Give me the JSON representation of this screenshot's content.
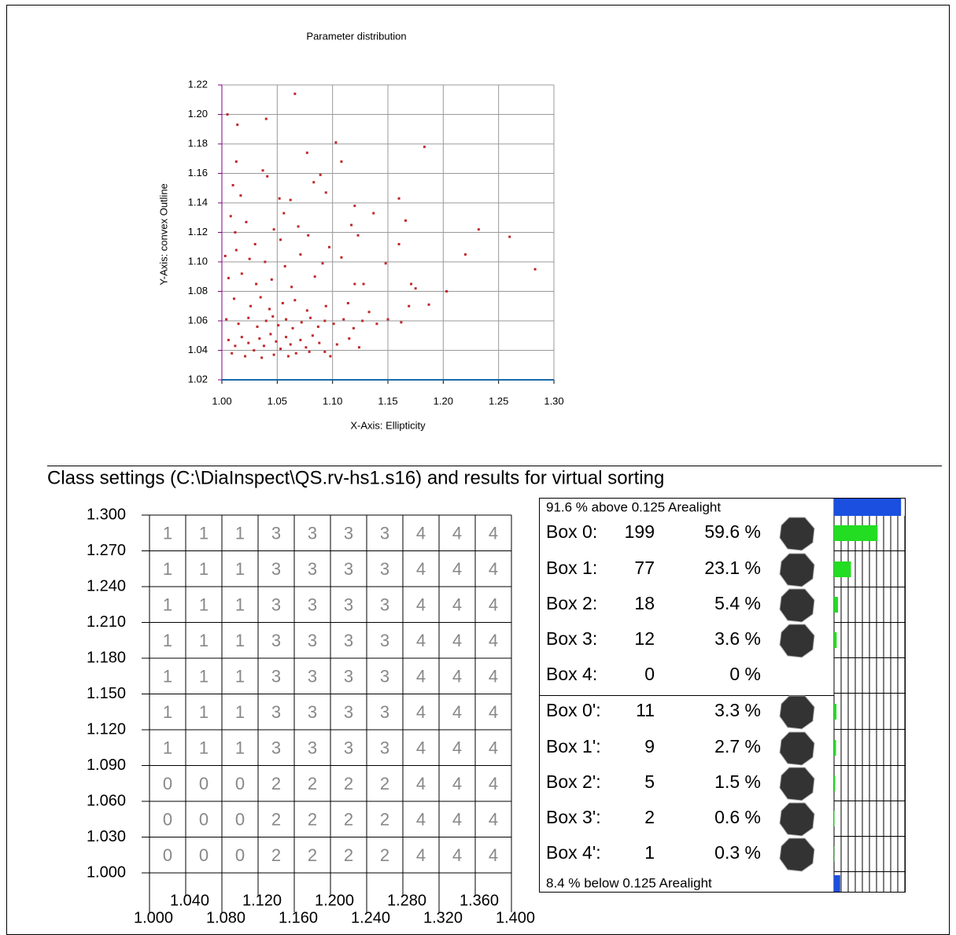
{
  "chart_data": {
    "type": "scatter",
    "title": "Parameter distribution",
    "x_label": "X-Axis: Ellipticity",
    "y_label": "Y-Axis: convex Outline",
    "color": "#c0282a",
    "grid": true,
    "xlim": [
      1.0,
      1.3
    ],
    "ylim": [
      1.02,
      1.22
    ],
    "xticks": [
      {
        "value": 1.0,
        "label": "1.00"
      },
      1.05,
      {
        "value": 1.1,
        "label": "1.10"
      },
      1.15,
      {
        "value": 1.2,
        "label": "1.20"
      },
      1.25,
      {
        "value": 1.3,
        "label": "1.30"
      }
    ],
    "yticks": [
      1.02,
      1.04,
      1.06,
      1.08,
      {
        "value": 1.1,
        "label": "1.10"
      },
      1.12,
      1.14,
      1.16,
      1.18,
      {
        "value": 1.2,
        "label": "1.20"
      },
      1.22
    ],
    "x": [
      1.005,
      1.014,
      1.013,
      1.04,
      1.066,
      1.077,
      1.103,
      1.108,
      1.183,
      1.01,
      1.017,
      1.037,
      1.041,
      1.052,
      1.056,
      1.062,
      1.083,
      1.089,
      1.094,
      1.12,
      1.137,
      1.16,
      1.166,
      1.008,
      1.012,
      1.022,
      1.03,
      1.047,
      1.053,
      1.069,
      1.078,
      1.097,
      1.117,
      1.123,
      1.16,
      1.232,
      1.26,
      1.003,
      1.013,
      1.025,
      1.039,
      1.057,
      1.071,
      1.091,
      1.108,
      1.148,
      1.22,
      1.283,
      1.006,
      1.018,
      1.031,
      1.045,
      1.063,
      1.084,
      1.12,
      1.128,
      1.171,
      1.175,
      1.203,
      1.011,
      1.026,
      1.035,
      1.043,
      1.055,
      1.066,
      1.077,
      1.094,
      1.114,
      1.133,
      1.169,
      1.187,
      1.004,
      1.015,
      1.024,
      1.032,
      1.04,
      1.046,
      1.051,
      1.058,
      1.064,
      1.072,
      1.08,
      1.087,
      1.093,
      1.101,
      1.11,
      1.119,
      1.127,
      1.14,
      1.15,
      1.162,
      1.006,
      1.012,
      1.018,
      1.024,
      1.029,
      1.034,
      1.038,
      1.044,
      1.049,
      1.053,
      1.058,
      1.062,
      1.067,
      1.071,
      1.076,
      1.082,
      1.088,
      1.093,
      1.098,
      1.104,
      1.115,
      1.124,
      1.009,
      1.021,
      1.036,
      1.047,
      1.06,
      1.079
    ],
    "y": [
      1.2,
      1.193,
      1.168,
      1.197,
      1.214,
      1.174,
      1.181,
      1.168,
      1.178,
      1.152,
      1.145,
      1.162,
      1.158,
      1.143,
      1.133,
      1.142,
      1.154,
      1.159,
      1.147,
      1.138,
      1.133,
      1.143,
      1.128,
      1.131,
      1.12,
      1.127,
      1.112,
      1.122,
      1.115,
      1.124,
      1.118,
      1.11,
      1.125,
      1.118,
      1.112,
      1.122,
      1.117,
      1.104,
      1.108,
      1.102,
      1.1,
      1.097,
      1.105,
      1.099,
      1.103,
      1.099,
      1.105,
      1.095,
      1.089,
      1.092,
      1.085,
      1.088,
      1.083,
      1.09,
      1.085,
      1.085,
      1.085,
      1.082,
      1.08,
      1.075,
      1.07,
      1.076,
      1.068,
      1.072,
      1.074,
      1.067,
      1.07,
      1.072,
      1.066,
      1.07,
      1.071,
      1.061,
      1.058,
      1.062,
      1.056,
      1.06,
      1.063,
      1.057,
      1.061,
      1.055,
      1.059,
      1.062,
      1.056,
      1.06,
      1.058,
      1.061,
      1.055,
      1.06,
      1.058,
      1.061,
      1.059,
      1.047,
      1.043,
      1.049,
      1.045,
      1.04,
      1.048,
      1.043,
      1.051,
      1.046,
      1.041,
      1.049,
      1.044,
      1.038,
      1.047,
      1.042,
      1.05,
      1.045,
      1.039,
      1.036,
      1.044,
      1.048,
      1.042,
      1.038,
      1.036,
      1.035,
      1.037,
      1.036,
      1.039
    ]
  },
  "class_settings": {
    "title": "Class settings (C:\\DiaInspect\\QS.rv-hs1.s16) and results for virtual sorting",
    "yticks": [
      {
        "value": 1.3,
        "label": "1.300"
      },
      {
        "value": 1.27,
        "label": "1.270"
      },
      {
        "value": 1.24,
        "label": "1.240"
      },
      {
        "value": 1.21,
        "label": "1.210"
      },
      {
        "value": 1.18,
        "label": "1.180"
      },
      {
        "value": 1.15,
        "label": "1.150"
      },
      {
        "value": 1.12,
        "label": "1.120"
      },
      {
        "value": 1.09,
        "label": "1.090"
      },
      {
        "value": 1.06,
        "label": "1.060"
      },
      {
        "value": 1.03,
        "label": "1.030"
      },
      {
        "value": 1.0,
        "label": "1.000"
      }
    ],
    "xticks": [
      {
        "value": 1.0,
        "label": "1.000"
      },
      {
        "value": 1.04,
        "label": "1.040"
      },
      {
        "value": 1.08,
        "label": "1.080"
      },
      {
        "value": 1.12,
        "label": "1.120"
      },
      {
        "value": 1.16,
        "label": "1.160"
      },
      {
        "value": 1.2,
        "label": "1.200"
      },
      {
        "value": 1.24,
        "label": "1.240"
      },
      {
        "value": 1.28,
        "label": "1.280"
      },
      {
        "value": 1.32,
        "label": "1.320"
      },
      {
        "value": 1.36,
        "label": "1.360"
      },
      {
        "value": 1.4,
        "label": "1.400"
      }
    ],
    "cells": [
      [
        1,
        1,
        1,
        3,
        3,
        3,
        3,
        4,
        4,
        4
      ],
      [
        1,
        1,
        1,
        3,
        3,
        3,
        3,
        4,
        4,
        4
      ],
      [
        1,
        1,
        1,
        3,
        3,
        3,
        3,
        4,
        4,
        4
      ],
      [
        1,
        1,
        1,
        3,
        3,
        3,
        3,
        4,
        4,
        4
      ],
      [
        1,
        1,
        1,
        3,
        3,
        3,
        3,
        4,
        4,
        4
      ],
      [
        1,
        1,
        1,
        3,
        3,
        3,
        3,
        4,
        4,
        4
      ],
      [
        1,
        1,
        1,
        3,
        3,
        3,
        3,
        4,
        4,
        4
      ],
      [
        0,
        0,
        0,
        2,
        2,
        2,
        2,
        4,
        4,
        4
      ],
      [
        0,
        0,
        0,
        2,
        2,
        2,
        2,
        4,
        4,
        4
      ],
      [
        0,
        0,
        0,
        2,
        2,
        2,
        2,
        4,
        4,
        4
      ]
    ]
  },
  "results": {
    "above": {
      "value": 91.6,
      "label": "91.6 % above 0.125 Arealight"
    },
    "boxes": [
      {
        "name": "Box 0:",
        "count": 199,
        "percent": 59.6,
        "percent_label": "59.6 %"
      },
      {
        "name": "Box 1:",
        "count": 77,
        "percent": 23.1,
        "percent_label": "23.1 %"
      },
      {
        "name": "Box 2:",
        "count": 18,
        "percent": 5.4,
        "percent_label": "5.4 %"
      },
      {
        "name": "Box 3:",
        "count": 12,
        "percent": 3.6,
        "percent_label": "3.6 %"
      },
      {
        "name": "Box 4:",
        "count": 0,
        "percent": 0,
        "percent_label": "0 %"
      },
      {
        "name": "Box 0':",
        "count": 11,
        "percent": 3.3,
        "percent_label": "3.3 %"
      },
      {
        "name": "Box 1':",
        "count": 9,
        "percent": 2.7,
        "percent_label": "2.7 %"
      },
      {
        "name": "Box 2':",
        "count": 5,
        "percent": 1.5,
        "percent_label": "1.5 %"
      },
      {
        "name": "Box 3':",
        "count": 2,
        "percent": 0.6,
        "percent_label": "0.6 %"
      },
      {
        "name": "Box 4':",
        "count": 1,
        "percent": 0.3,
        "percent_label": "0.3 %"
      }
    ],
    "below": {
      "value": 8.4,
      "label": "8.4 % below 0.125 Arealight"
    }
  }
}
